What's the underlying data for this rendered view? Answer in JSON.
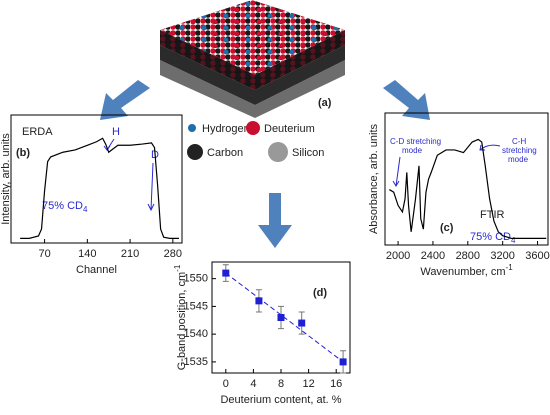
{
  "diagram": {
    "label": "(a)",
    "legend": [
      "Hydrogen",
      "Deuterium",
      "Carbon",
      "Silicon"
    ]
  },
  "chart_data": [
    {
      "type": "line",
      "panel": "(b)",
      "xlabel": "Channel",
      "ylabel": "Intensity, arb. units",
      "annotations": {
        "method": "ERDA",
        "h": "H",
        "d": "D",
        "sample": "75% CD",
        "sample_sub": "4"
      },
      "x": [
        30,
        45,
        60,
        65,
        70,
        75,
        80,
        100,
        120,
        140,
        155,
        165,
        170,
        175,
        180,
        190,
        210,
        230,
        245,
        250,
        255,
        260,
        265,
        275,
        290
      ],
      "values": [
        0.04,
        0.04,
        0.06,
        0.12,
        0.45,
        0.7,
        0.74,
        0.78,
        0.8,
        0.84,
        0.87,
        0.9,
        0.85,
        0.78,
        0.8,
        0.84,
        0.84,
        0.85,
        0.86,
        0.82,
        0.5,
        0.12,
        0.05,
        0.04,
        0.04
      ],
      "color": "#000000",
      "xlim": [
        15,
        295
      ],
      "ylim": [
        0,
        1.1
      ],
      "xticks": [
        70,
        140,
        210,
        280
      ]
    },
    {
      "type": "line",
      "panel": "(c)",
      "xlabel": "Wavenumber, cm",
      "xlabel_sup": "-1",
      "ylabel": "Absorbance, arb. units",
      "annotations": {
        "cd": [
          "C-D stretching",
          "mode"
        ],
        "ch": [
          "C-H",
          "stretching",
          "mode"
        ],
        "method": "FTIR",
        "sample": "75% CD",
        "sample_sub": "4"
      },
      "x": [
        1900,
        1950,
        2000,
        2050,
        2080,
        2100,
        2120,
        2150,
        2200,
        2240,
        2260,
        2290,
        2320,
        2350,
        2380,
        2450,
        2550,
        2650,
        2750,
        2850,
        2920,
        2960,
        3000,
        3050,
        3100,
        3150,
        3200,
        3300,
        3450,
        3600,
        3700
      ],
      "values": [
        0.42,
        0.4,
        0.3,
        0.25,
        0.35,
        0.55,
        0.3,
        0.1,
        0.35,
        0.6,
        0.2,
        0.12,
        0.4,
        0.5,
        0.55,
        0.68,
        0.72,
        0.72,
        0.7,
        0.78,
        0.8,
        0.78,
        0.6,
        0.35,
        0.18,
        0.1,
        0.07,
        0.05,
        0.05,
        0.05,
        0.05
      ],
      "color": "#000000",
      "xlim": [
        1850,
        3720
      ],
      "ylim": [
        0,
        1
      ],
      "xticks": [
        2000,
        2400,
        2800,
        3200,
        3600
      ]
    },
    {
      "type": "scatter",
      "panel": "(d)",
      "xlabel": "Deuterium content, at. %",
      "ylabel": "G-band position, cm",
      "ylabel_sup": "-1",
      "x": [
        0,
        4.8,
        8,
        11,
        17
      ],
      "values": [
        1551,
        1546,
        1543,
        1542,
        1535
      ],
      "errors": [
        1.5,
        2,
        2,
        2,
        2
      ],
      "fit": {
        "x": [
          0,
          17
        ],
        "values": [
          1551,
          1535
        ]
      },
      "color": "#1f1fd6",
      "xlim": [
        -2,
        18
      ],
      "ylim": [
        1533,
        1553
      ],
      "xticks": [
        0,
        4,
        8,
        12,
        16
      ],
      "yticks": [
        1535,
        1540,
        1545,
        1550
      ]
    }
  ]
}
